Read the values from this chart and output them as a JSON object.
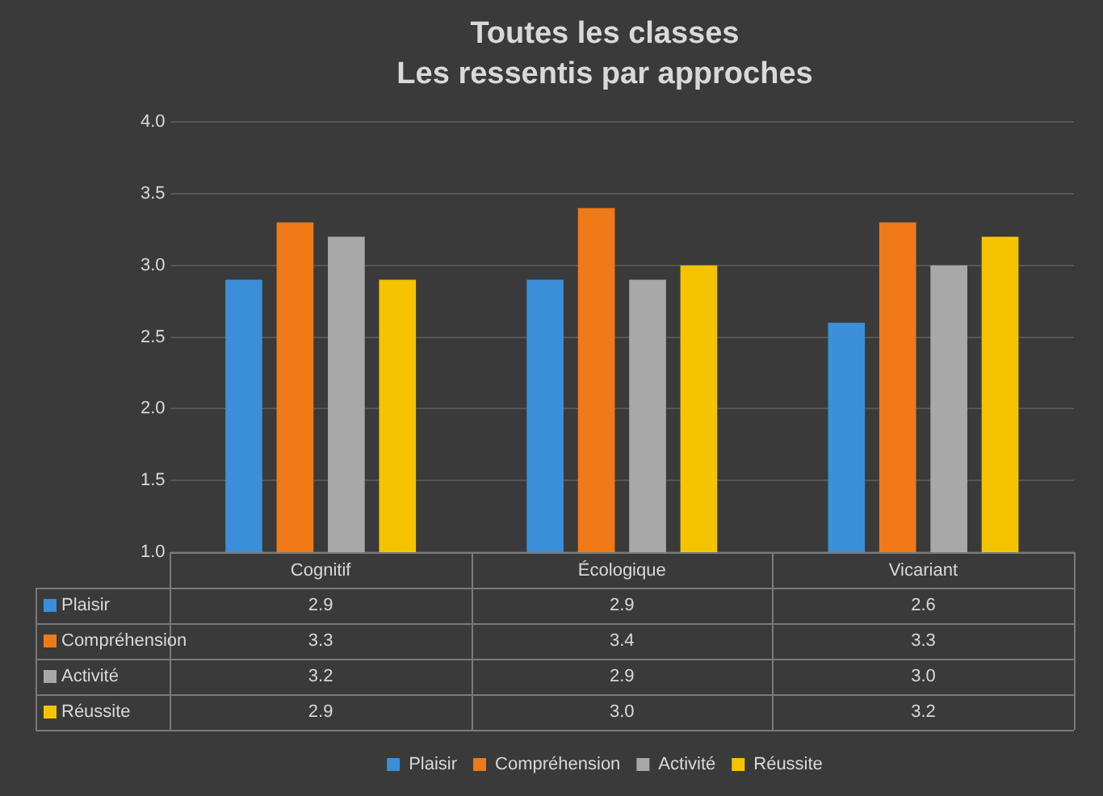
{
  "chart_data": {
    "type": "bar",
    "title": "Toutes les classes",
    "subtitle": "Les ressentis par approches",
    "categories": [
      "Cognitif",
      "Écologique",
      "Vicariant"
    ],
    "series": [
      {
        "name": "Plaisir",
        "color": "#3b8fd8",
        "values": [
          2.9,
          2.9,
          2.6
        ],
        "value_labels": [
          "2.9",
          "2.9",
          "2.6"
        ]
      },
      {
        "name": "Compréhension",
        "color": "#f07a18",
        "values": [
          3.3,
          3.4,
          3.3
        ],
        "value_labels": [
          "3.3",
          "3.4",
          "3.3"
        ]
      },
      {
        "name": "Activité",
        "color": "#a8a8a8",
        "values": [
          3.2,
          2.9,
          3.0
        ],
        "value_labels": [
          "3.2",
          "2.9",
          "3.0"
        ]
      },
      {
        "name": "Réussite",
        "color": "#f5c400",
        "values": [
          2.9,
          3.0,
          3.2
        ],
        "value_labels": [
          "2.9",
          "3.0",
          "3.2"
        ]
      }
    ],
    "ylim": [
      1,
      4
    ],
    "yticks": [
      {
        "value": 1,
        "label": "1.0"
      },
      {
        "value": 1.5,
        "label": "1.5"
      },
      {
        "value": 2,
        "label": "2.0"
      },
      {
        "value": 2.5,
        "label": "2.5"
      },
      {
        "value": 3,
        "label": "3.0"
      },
      {
        "value": 3.5,
        "label": "3.5"
      },
      {
        "value": 4,
        "label": "4.0"
      }
    ],
    "grid": "y",
    "legend": "bottom"
  }
}
